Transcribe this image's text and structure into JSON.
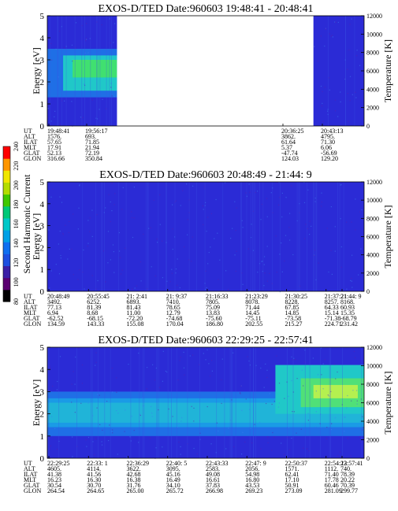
{
  "chart_data": {
    "type": "heatmap",
    "colorbar": {
      "label": "Second Harmonic Current",
      "ticks": [
        "80",
        "100",
        "120",
        "140",
        "160",
        "180",
        "200",
        "220",
        "240"
      ],
      "colors": [
        "#000000",
        "#5a0070",
        "#3b1fa6",
        "#1d4fe0",
        "#0f6ff0",
        "#00a0e6",
        "#00c8c8",
        "#00c878",
        "#40c800",
        "#b4dc00",
        "#f0e600",
        "#ff9600",
        "#ff0000"
      ]
    },
    "panels": [
      {
        "title": "EXOS-D/TED   Date:960603  19:48:41 - 20:48:41",
        "ylabel": "Energy [eV]",
        "y2label": "Temperature [K]",
        "yticks": [
          "0",
          "1",
          "2",
          "3",
          "4",
          "5"
        ],
        "y2ticks": [
          "0",
          "2000",
          "4000",
          "6000",
          "8000",
          "10000",
          "12000"
        ],
        "ylim": [
          0,
          5
        ],
        "y2lim": [
          0,
          12000
        ],
        "data_gap": [
          0.22,
          0.84
        ],
        "bands": [
          {
            "lo": 0.0,
            "hi": 5.0,
            "color": "#2b2bd6"
          },
          {
            "lo": 1.3,
            "hi": 3.5,
            "color": "#1f6fe6",
            "x": [
              0.0,
              0.22
            ]
          },
          {
            "lo": 1.6,
            "hi": 3.2,
            "color": "#20c8c8",
            "x": [
              0.05,
              0.22
            ]
          },
          {
            "lo": 2.2,
            "hi": 3.0,
            "color": "#40e070",
            "x": [
              0.08,
              0.22
            ]
          }
        ],
        "ephemeris_labels": [
          "UT",
          "ALT",
          "ILAT",
          "MLT",
          "GLAT",
          "GLON"
        ],
        "ephemeris": [
          [
            "19:48:41",
            "1576.",
            "57.65",
            "17.91",
            "52.13",
            "316.66"
          ],
          [
            "19:56:17",
            "693.",
            "71.85",
            "21.94",
            "72.19",
            "350.84"
          ],
          [
            "20:36:25",
            "3862.",
            "61.64",
            "5.37",
            "-47.74",
            "124.03"
          ],
          [
            "20:43:13",
            "4795.",
            "71.30",
            "6.06",
            "-56.69",
            "129.20"
          ]
        ]
      },
      {
        "title": "EXOS-D/TED   Date:960603  20:48:49 - 21:44: 9",
        "ylabel": "Energy [eV]",
        "y2label": "Temperature [K]",
        "yticks": [
          "0",
          "1",
          "2",
          "3",
          "4",
          "5"
        ],
        "y2ticks": [
          "0",
          "2000",
          "4000",
          "6000",
          "8000",
          "10000",
          "12000"
        ],
        "ylim": [
          0,
          5
        ],
        "y2lim": [
          0,
          12000
        ],
        "bands": [
          {
            "lo": 0.0,
            "hi": 5.0,
            "color": "#2b2bd6"
          }
        ],
        "ephemeris_labels": [
          "UT",
          "ALT",
          "ILAT",
          "MLT",
          "GLAT",
          "GLON"
        ],
        "ephemeris": [
          [
            "20:48:49",
            "3492.",
            "77.13",
            "6.94",
            "-62.52",
            "134.59"
          ],
          [
            "20:55:45",
            "6252.",
            "81.39",
            "8.68",
            "-68.15",
            "143.33"
          ],
          [
            "21: 2:41",
            "6893.",
            "81.43",
            "11.00",
            "-72.20",
            "155.08"
          ],
          [
            "21: 9:37",
            "7410.",
            "78.65",
            "12.79",
            "-74.68",
            "170.04"
          ],
          [
            "21:16:33",
            "7805.",
            "75.09",
            "13.83",
            "-75.60",
            "186.80"
          ],
          [
            "21:23:29",
            "8078.",
            "71.44",
            "14.45",
            "-75.11",
            "202.55"
          ],
          [
            "21:30:25",
            "8228.",
            "67.85",
            "14.85",
            "-73.58",
            "215.27"
          ],
          [
            "21:37:21",
            "8257.",
            "64.33",
            "15.14",
            "-71.38",
            "224.71"
          ],
          [
            "21:44: 9",
            "8168.",
            "60.93",
            "15.35",
            "-68.79",
            "231.42"
          ]
        ]
      },
      {
        "title": "EXOS-D/TED   Date:960603  22:29:25 - 22:57:41",
        "ylabel": "Energy [eV]",
        "y2label": "Temperature [K]",
        "yticks": [
          "0",
          "1",
          "2",
          "3",
          "4",
          "5"
        ],
        "y2ticks": [
          "0",
          "2000",
          "4000",
          "6000",
          "8000",
          "10000",
          "12000"
        ],
        "ylim": [
          0,
          5
        ],
        "y2lim": [
          0,
          12000
        ],
        "bands": [
          {
            "lo": 0.0,
            "hi": 5.0,
            "color": "#2b2bd6"
          },
          {
            "lo": 1.0,
            "hi": 3.0,
            "color": "#1f6fe6"
          },
          {
            "lo": 1.4,
            "hi": 2.7,
            "color": "#1a9be6"
          },
          {
            "lo": 1.6,
            "hi": 2.5,
            "color": "#20b4d8"
          },
          {
            "lo": 2.0,
            "hi": 4.2,
            "color": "#20c8c8",
            "x": [
              0.72,
              1.0
            ]
          },
          {
            "lo": 2.3,
            "hi": 3.6,
            "color": "#50e078",
            "x": [
              0.8,
              1.0
            ]
          },
          {
            "lo": 2.7,
            "hi": 3.3,
            "color": "#b4f050",
            "x": [
              0.84,
              0.98
            ]
          }
        ],
        "ephemeris_labels": [
          "UT",
          "ALT",
          "ILAT",
          "MLT",
          "GLAT",
          "GLON"
        ],
        "ephemeris": [
          [
            "22:29:25",
            "4605.",
            "41.38",
            "16.23",
            "30.54",
            "264.54"
          ],
          [
            "22:33: 1",
            "4114.",
            "41.56",
            "16.30",
            "30.70",
            "264.65"
          ],
          [
            "22:36:29",
            "3622.",
            "42.68",
            "16.38",
            "31.76",
            "265.00"
          ],
          [
            "22:40: 5",
            "3095.",
            "45.16",
            "16.49",
            "34.10",
            "265.72"
          ],
          [
            "22:43:33",
            "2583.",
            "49.08",
            "16.61",
            "37.83",
            "266.98"
          ],
          [
            "22:47: 9",
            "2056.",
            "54.98",
            "16.80",
            "43.53",
            "269.23"
          ],
          [
            "22:50:37",
            "1571.",
            "62.41",
            "17.10",
            "50.91",
            "273.09"
          ],
          [
            "22:54:13",
            "1112.",
            "71.40",
            "17.78",
            "60.46",
            "281.09"
          ],
          [
            "22:57:41",
            "740.",
            "78.39",
            "20.22",
            "70.39",
            "299.77"
          ]
        ]
      }
    ]
  }
}
